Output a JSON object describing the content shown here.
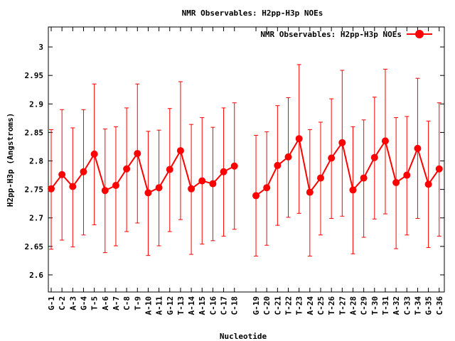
{
  "chart_data": {
    "type": "line",
    "title": "NMR Observables: H2pp-H3p NOEs",
    "xlabel": "Nucleotide",
    "ylabel": "H2pp-H3p (Angstroms)",
    "ylim": [
      2.57,
      3.035
    ],
    "yticks": [
      "2.6",
      "2.65",
      "2.7",
      "2.75",
      "2.8",
      "2.85",
      "2.9",
      "2.95",
      "3"
    ],
    "yticks_values": [
      2.6,
      2.65,
      2.7,
      2.75,
      2.8,
      2.85,
      2.9,
      2.95,
      3.0
    ],
    "legend_position": "top-right",
    "grid": false,
    "color": "#ff0000",
    "series": [
      {
        "name": "NMR Observables: H2pp-H3p NOEs",
        "segments": [
          {
            "categories": [
              "G-1",
              "C-2",
              "A-3",
              "G-4",
              "T-5",
              "A-6",
              "A-7",
              "C-8",
              "T-9",
              "A-10",
              "A-11",
              "G-12",
              "T-13",
              "A-14",
              "A-15",
              "C-16",
              "C-17",
              "C-18"
            ],
            "values": [
              2.751,
              2.776,
              2.755,
              2.781,
              2.812,
              2.748,
              2.757,
              2.786,
              2.813,
              2.744,
              2.753,
              2.785,
              2.818,
              2.751,
              2.765,
              2.76,
              2.781,
              2.791
            ],
            "low": [
              2.645,
              2.661,
              2.649,
              2.67,
              2.688,
              2.639,
              2.651,
              2.676,
              2.691,
              2.634,
              2.651,
              2.676,
              2.697,
              2.636,
              2.654,
              2.66,
              2.668,
              2.68
            ],
            "high": [
              2.855,
              2.89,
              2.858,
              2.89,
              2.935,
              2.856,
              2.86,
              2.893,
              2.935,
              2.852,
              2.854,
              2.892,
              2.939,
              2.864,
              2.876,
              2.859,
              2.893,
              2.902
            ]
          },
          {
            "categories": [
              "G-19",
              "C-20",
              "C-21",
              "T-22",
              "T-23",
              "A-24",
              "C-25",
              "T-26",
              "T-27",
              "A-28",
              "C-29",
              "T-30",
              "T-31",
              "A-32",
              "C-33",
              "T-34",
              "G-35",
              "C-36"
            ],
            "values": [
              2.739,
              2.753,
              2.792,
              2.807,
              2.839,
              2.745,
              2.77,
              2.805,
              2.832,
              2.749,
              2.77,
              2.806,
              2.835,
              2.762,
              2.775,
              2.822,
              2.759,
              2.786
            ],
            "low": [
              2.633,
              2.652,
              2.687,
              2.701,
              2.708,
              2.633,
              2.67,
              2.699,
              2.703,
              2.637,
              2.666,
              2.698,
              2.707,
              2.646,
              2.67,
              2.699,
              2.648,
              2.668
            ],
            "high": [
              2.845,
              2.851,
              2.897,
              2.911,
              2.969,
              2.855,
              2.868,
              2.909,
              2.959,
              2.86,
              2.872,
              2.912,
              2.961,
              2.876,
              2.878,
              2.945,
              2.87,
              2.902
            ]
          }
        ]
      }
    ]
  }
}
